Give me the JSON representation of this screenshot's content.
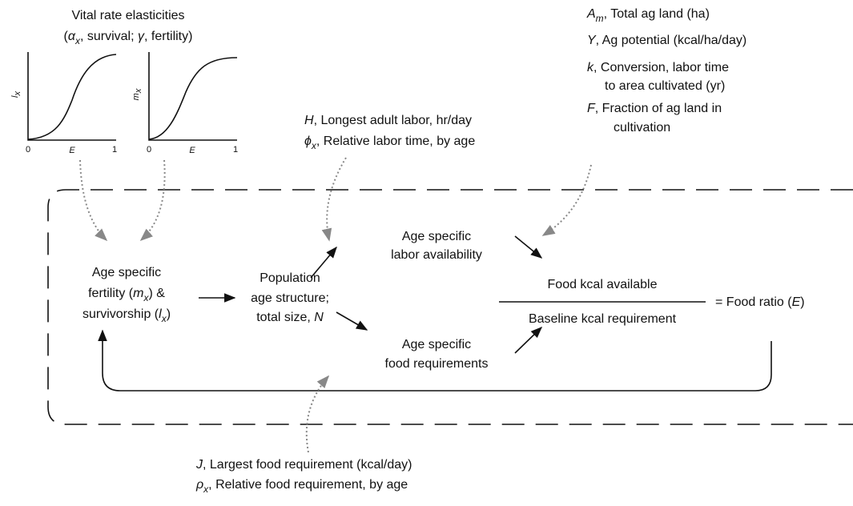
{
  "elasticities": {
    "title": "Vital rate elasticities",
    "subtitle": [
      "(",
      "α",
      "x",
      ", survival; ",
      "γ",
      ", fertility)"
    ],
    "plot_lx": {
      "ylabel": [
        "l",
        "x"
      ],
      "xlabel": "E",
      "x0": "0",
      "x1": "1"
    },
    "plot_mx": {
      "ylabel": [
        "m",
        "x"
      ],
      "xlabel": "E",
      "x0": "0",
      "x1": "1"
    }
  },
  "labor_inputs": [
    [
      "H",
      ", Longest adult labor, hr/day"
    ],
    [
      "ϕ",
      "x",
      ", Relative labor time, by age"
    ]
  ],
  "land_inputs": [
    [
      "A",
      "m",
      ", Total ag land (ha)"
    ],
    [
      "Y",
      ", Ag potential (kcal/ha/day)"
    ],
    [
      "k",
      ", Conversion, labor time"
    ],
    [
      "to area cultivated (yr)"
    ],
    [
      "F",
      ", Fraction of ag land in"
    ],
    [
      "cultivation"
    ]
  ],
  "food_inputs": [
    [
      "J",
      ", Largest food requirement (kcal/day)"
    ],
    [
      "ρ",
      "x",
      ", Relative food requirement, by age"
    ]
  ],
  "nodes": {
    "vital_rates": [
      [
        "Age specific"
      ],
      [
        "fertility (",
        "m",
        "x",
        ") &"
      ],
      [
        "survivorship (",
        "l",
        "x",
        ")"
      ]
    ],
    "population": [
      [
        "Population"
      ],
      [
        "age structure;"
      ],
      [
        "total size, ",
        "N"
      ]
    ],
    "labor": [
      "Age specific",
      "labor availability"
    ],
    "food": [
      "Age specific",
      "food requirements"
    ],
    "ratio": {
      "numerator": "Food kcal available",
      "denominator": "Baseline kcal requirement",
      "result": [
        "= Food ratio (",
        "E",
        ")"
      ]
    }
  }
}
